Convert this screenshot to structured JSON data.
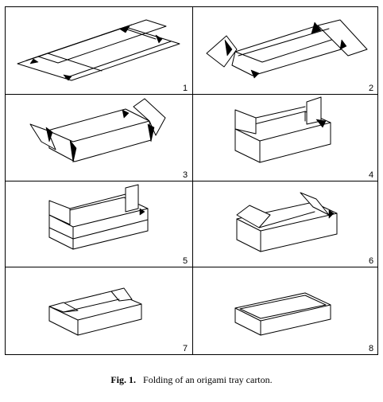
{
  "figure": {
    "panels": [
      {
        "number": "1"
      },
      {
        "number": "2"
      },
      {
        "number": "3"
      },
      {
        "number": "4"
      },
      {
        "number": "5"
      },
      {
        "number": "6"
      },
      {
        "number": "7"
      },
      {
        "number": "8"
      }
    ],
    "caption_label": "Fig. 1.",
    "caption_text": "Folding of an origami tray carton."
  }
}
